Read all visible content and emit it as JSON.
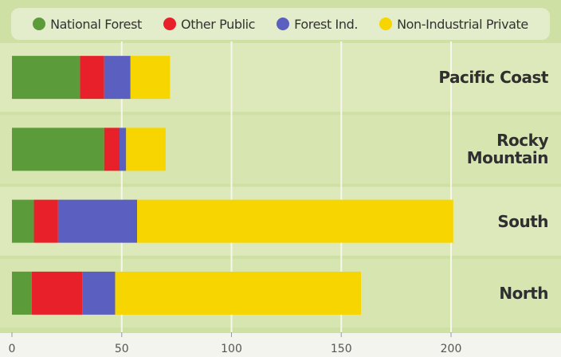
{
  "chart_data": {
    "type": "stacked-barh",
    "categories": [
      "Pacific Coast",
      "Rocky Mountain",
      "South",
      "North"
    ],
    "series": [
      {
        "name": "National Forest",
        "color": "#5c9b3a",
        "values": [
          31,
          42,
          10,
          9
        ]
      },
      {
        "name": "Other Public",
        "color": "#e8202a",
        "values": [
          11,
          7,
          11,
          23
        ]
      },
      {
        "name": "Forest Ind.",
        "color": "#5b5fc0",
        "values": [
          12,
          3,
          36,
          15
        ]
      },
      {
        "name": "Non-Industrial Private",
        "color": "#f7d500",
        "values": [
          18,
          18,
          144,
          112
        ]
      }
    ],
    "xlim": [
      0,
      250
    ],
    "xticks": [
      0,
      50,
      100,
      150,
      200
    ],
    "grid": true,
    "legend": "top"
  }
}
